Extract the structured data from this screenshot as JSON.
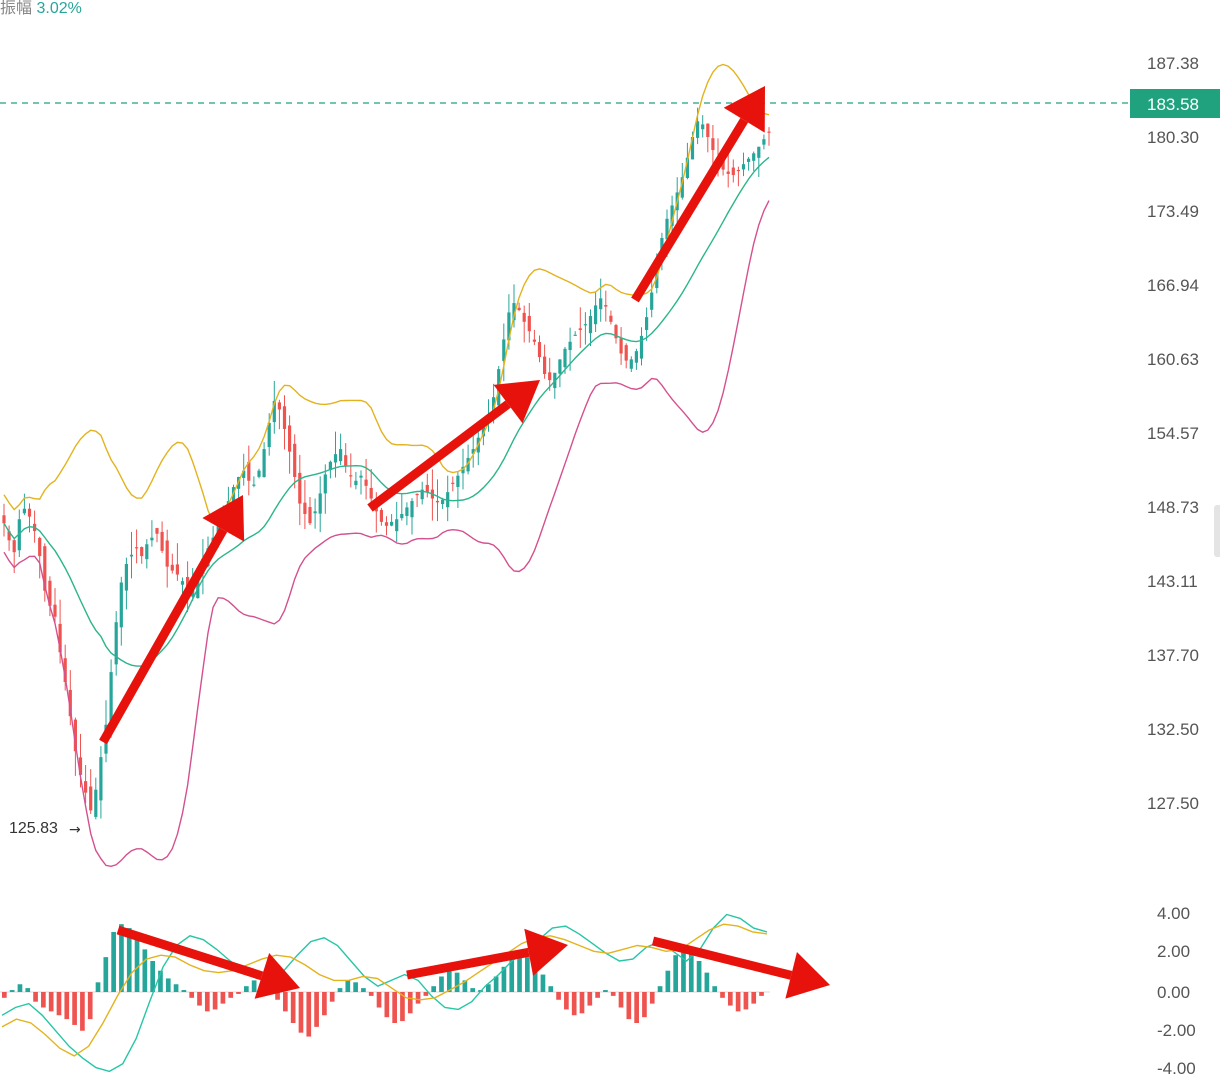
{
  "header": {
    "label": "振幅",
    "value": "3.02%"
  },
  "colors": {
    "up": "#26a69a",
    "down": "#ef5350",
    "boll_upper": "#e3b31e",
    "boll_mid": "#2bb58b",
    "boll_lower": "#d4508f",
    "macd_dif": "#26c6a6",
    "macd_dea": "#e3b31e",
    "arrow": "#e8120c",
    "price_tag": "#1fa27d"
  },
  "price_axis": {
    "ticks": [
      "187.38",
      "180.30",
      "173.49",
      "166.94",
      "160.63",
      "154.57",
      "148.73",
      "143.11",
      "137.70",
      "132.50",
      "127.50"
    ],
    "current_price": "183.58",
    "low_label": "125.83",
    "low_arrow": "→"
  },
  "macd_axis": {
    "ticks": [
      "4.00",
      "2.00",
      "0.00",
      "-2.00",
      "-4.00"
    ]
  },
  "chart_data": {
    "type": "candlestick",
    "price_ylim": [
      127.5,
      187.38
    ],
    "macd_ylim": [
      -4,
      4
    ],
    "current_price": 183.58,
    "low": 125.83,
    "grid": false,
    "closes": [
      147.5,
      146.2,
      145.3,
      147.8,
      148.6,
      148.0,
      146.9,
      145.0,
      142.4,
      141.3,
      140.5,
      137.9,
      135.8,
      133.4,
      131.0,
      129.4,
      128.2,
      127.0,
      128.4,
      130.6,
      132.8,
      136.5,
      140.1,
      143.0,
      144.4,
      145.1,
      145.6,
      145.0,
      145.9,
      146.4,
      146.7,
      145.4,
      144.2,
      143.9,
      143.6,
      143.1,
      142.4,
      142.6,
      143.6,
      144.8,
      145.6,
      146.4,
      147.8,
      148.6,
      149.2,
      150.3,
      151.1,
      151.6,
      150.8,
      150.5,
      151.6,
      153.3,
      155.4,
      157.2,
      156.5,
      154.9,
      153.1,
      151.1,
      149.0,
      148.2,
      147.5,
      148.4,
      149.8,
      151.3,
      152.3,
      152.9,
      153.3,
      152.0,
      151.2,
      150.8,
      151.2,
      150.4,
      149.4,
      148.4,
      147.6,
      147.3,
      147.6,
      147.8,
      148.2,
      148.7,
      149.2,
      149.7,
      150.1,
      149.9,
      149.4,
      149.1,
      149.3,
      149.9,
      150.6,
      151.2,
      151.9,
      152.6,
      153.3,
      154.2,
      155.1,
      156.0,
      157.5,
      159.8,
      162.3,
      164.6,
      165.4,
      164.8,
      163.8,
      163.0,
      162.1,
      160.8,
      159.4,
      158.9,
      159.5,
      160.6,
      161.5,
      162.1,
      162.7,
      163.1,
      163.6,
      164.3,
      165.2,
      165.8,
      165.1,
      163.8,
      162.4,
      161.1,
      160.5,
      160.6,
      161.3,
      162.6,
      164.2,
      166.3,
      168.9,
      171.1,
      172.8,
      174.0,
      175.2,
      176.6,
      178.4,
      180.3,
      181.8,
      181.5,
      180.3,
      179.1,
      178.1,
      177.3,
      176.9,
      176.8,
      177.2,
      177.8,
      178.3,
      178.8,
      179.4,
      180.1,
      180.8
    ],
    "macd": {
      "histogram": [
        -0.3,
        0.1,
        0.4,
        0.2,
        -0.5,
        -0.8,
        -1.0,
        -1.2,
        -1.4,
        -1.7,
        -2.0,
        -1.4,
        0.5,
        1.8,
        3.1,
        3.5,
        3.3,
        2.8,
        2.2,
        1.6,
        1.1,
        0.7,
        0.4,
        0.1,
        -0.3,
        -0.7,
        -1.0,
        -0.9,
        -0.6,
        -0.3,
        -0.1,
        0.3,
        0.6,
        0.4,
        0.1,
        -0.4,
        -1.0,
        -1.6,
        -2.1,
        -2.3,
        -1.8,
        -1.2,
        -0.5,
        0.2,
        0.6,
        0.5,
        0.2,
        -0.2,
        -0.8,
        -1.3,
        -1.6,
        -1.5,
        -1.1,
        -0.6,
        -0.2,
        0.3,
        0.8,
        1.2,
        1.0,
        0.6,
        0.2,
        0.1,
        0.4,
        0.8,
        1.3,
        1.7,
        2.1,
        1.8,
        1.4,
        0.9,
        0.3,
        -0.4,
        -0.9,
        -1.2,
        -1.1,
        -0.7,
        -0.3,
        0.1,
        -0.2,
        -0.8,
        -1.4,
        -1.6,
        -1.3,
        -0.6,
        0.3,
        1.1,
        1.9,
        2.3,
        2.1,
        1.6,
        1.0,
        0.3,
        -0.3,
        -0.7,
        -1.0,
        -0.9,
        -0.6,
        -0.2
      ],
      "dif": [
        -1.2,
        -0.8,
        -0.6,
        -1.2,
        -2.0,
        -2.8,
        -3.4,
        -3.9,
        -4.1,
        -3.7,
        -2.4,
        -0.5,
        1.3,
        2.4,
        2.9,
        2.7,
        2.2,
        1.6,
        1.1,
        0.7,
        0.6,
        1.1,
        1.9,
        2.6,
        2.8,
        2.4,
        1.6,
        0.8,
        0.3,
        0.6,
        0.9,
        0.6,
        -0.2,
        -0.8,
        -0.9,
        -0.5,
        0.3,
        0.9,
        1.6,
        2.1,
        2.7,
        3.3,
        3.4,
        3.0,
        2.5,
        2.0,
        1.6,
        1.7,
        2.3,
        2.6,
        2.1,
        1.6,
        2.2,
        3.3,
        4.0,
        3.8,
        3.3,
        3.1
      ],
      "dea": [
        -1.8,
        -1.4,
        -1.6,
        -2.2,
        -2.9,
        -3.3,
        -2.8,
        -1.6,
        -0.2,
        1.0,
        1.7,
        1.9,
        1.8,
        1.4,
        1.1,
        1.0,
        1.1,
        1.4,
        1.7,
        1.9,
        1.8,
        1.4,
        0.9,
        0.6,
        0.6,
        0.8,
        0.7,
        0.2,
        -0.3,
        -0.4,
        -0.3,
        0.1,
        0.5,
        1.0,
        1.5,
        2.0,
        2.5,
        2.8,
        2.9,
        2.7,
        2.4,
        2.1,
        2.0,
        2.2,
        2.4,
        2.3,
        2.1,
        2.2,
        2.7,
        3.2,
        3.5,
        3.4,
        3.1,
        3.0
      ]
    }
  }
}
